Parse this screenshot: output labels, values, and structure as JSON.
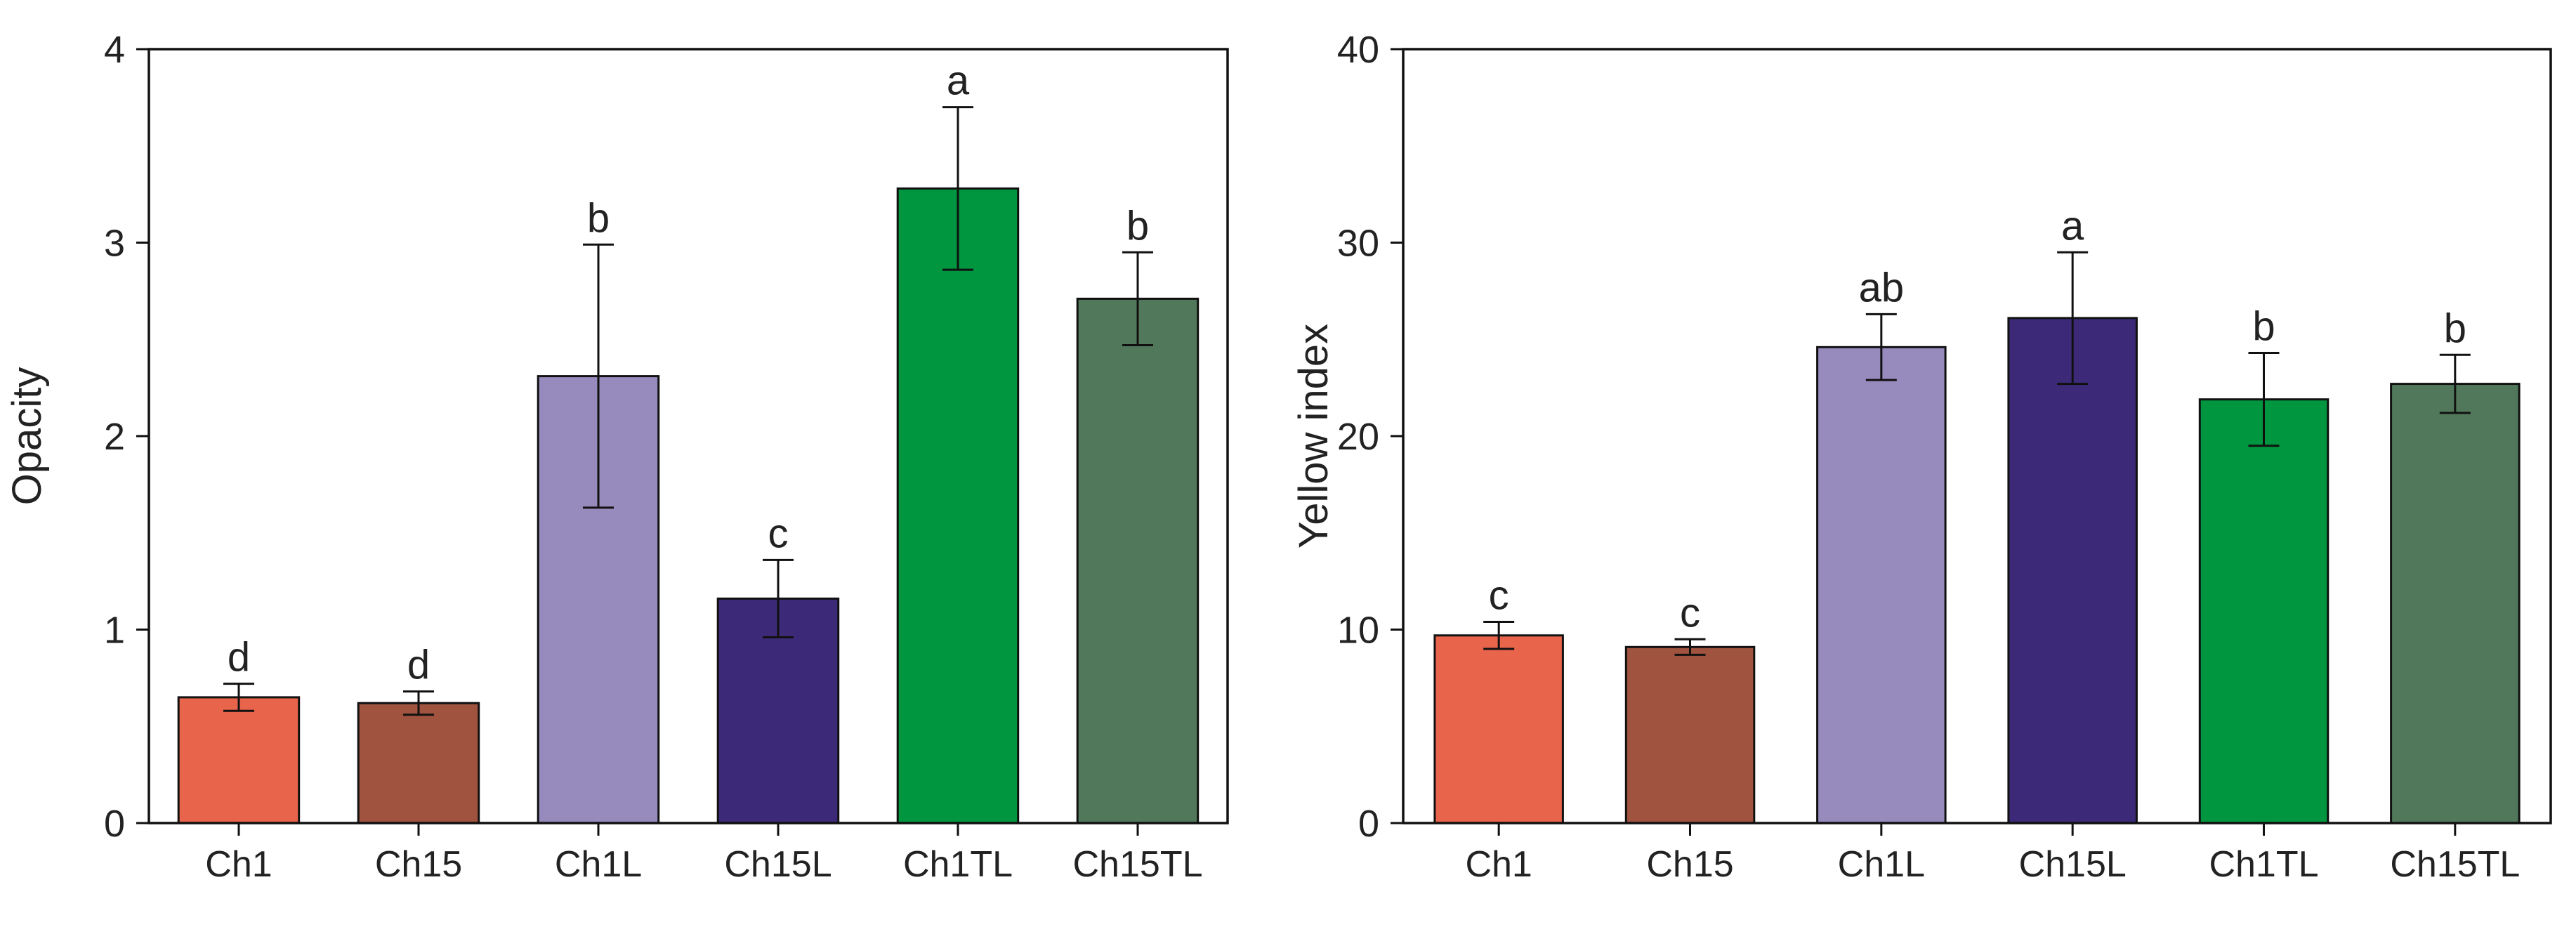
{
  "chart_data": [
    {
      "type": "bar",
      "title": "",
      "xlabel": "",
      "ylabel": "Opacity",
      "ylim": [
        0,
        4
      ],
      "yticks": [
        0,
        1,
        2,
        3,
        4
      ],
      "grid": false,
      "categories": [
        "Ch1",
        "Ch15",
        "Ch1L",
        "Ch15L",
        "Ch1TL",
        "Ch15TL"
      ],
      "values": [
        0.65,
        0.62,
        2.31,
        1.16,
        3.28,
        2.71
      ],
      "errors": [
        0.07,
        0.06,
        0.68,
        0.2,
        0.42,
        0.24
      ],
      "significance_letters": [
        "d",
        "d",
        "b",
        "c",
        "a",
        "b"
      ],
      "colors": [
        "#E8644B",
        "#A0533F",
        "#978ABD",
        "#3C2A78",
        "#00963F",
        "#51785A"
      ]
    },
    {
      "type": "bar",
      "title": "",
      "xlabel": "",
      "ylabel": "Yellow index",
      "ylim": [
        0,
        40
      ],
      "yticks": [
        0,
        10,
        20,
        30,
        40
      ],
      "grid": false,
      "categories": [
        "Ch1",
        "Ch15",
        "Ch1L",
        "Ch15L",
        "Ch1TL",
        "Ch15TL"
      ],
      "values": [
        9.7,
        9.1,
        24.6,
        26.1,
        21.9,
        22.7
      ],
      "errors": [
        0.7,
        0.4,
        1.7,
        3.4,
        2.4,
        1.5
      ],
      "significance_letters": [
        "c",
        "c",
        "ab",
        "a",
        "b",
        "b"
      ],
      "colors": [
        "#E8644B",
        "#A0533F",
        "#978ABD",
        "#3C2A78",
        "#00963F",
        "#51785A"
      ]
    }
  ]
}
